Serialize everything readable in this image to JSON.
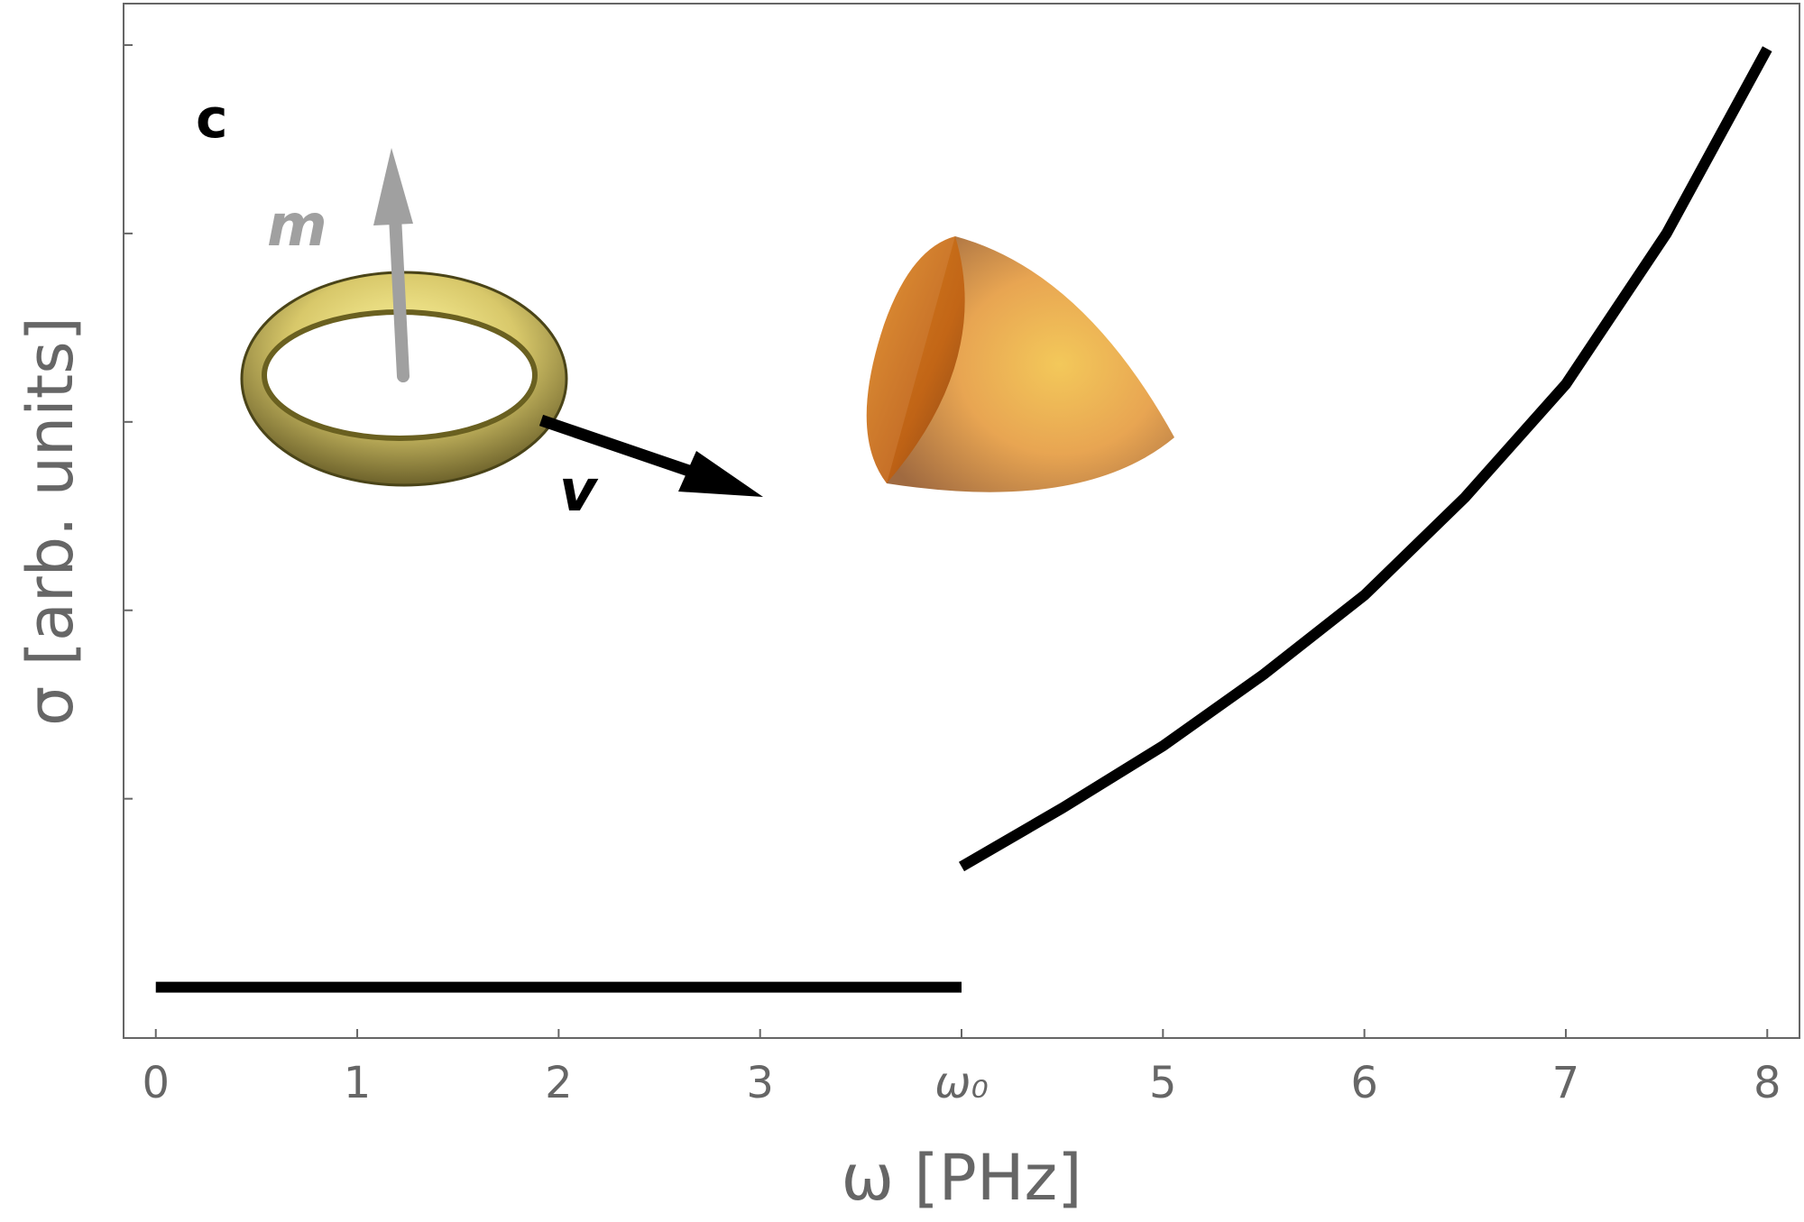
{
  "chart_data": {
    "type": "line",
    "xlabel": "ω [PHz]",
    "ylabel": "σ [arb. units]",
    "annotations": [
      "c",
      "m",
      "v"
    ],
    "series": [
      {
        "color": "#000000",
        "x": [
          0,
          4
        ],
        "values": [
          0,
          0
        ]
      },
      {
        "color": "#000000",
        "x": [
          4,
          4.5,
          5,
          5.5,
          6,
          6.5,
          7,
          7.5,
          8
        ],
        "values": [
          0.64,
          0.95,
          1.28,
          1.66,
          2.08,
          2.6,
          3.2,
          4.0,
          4.98
        ]
      }
    ],
    "xlim": [
      -0.16,
      8.16
    ],
    "xticks": [
      0,
      1,
      2,
      3,
      {
        "value": 4,
        "label": "ω₀"
      },
      5,
      6,
      7,
      8
    ],
    "ylim": [
      -0.27,
      5.22
    ],
    "yticks": [
      1,
      2,
      3,
      4,
      5
    ],
    "grid": false
  }
}
